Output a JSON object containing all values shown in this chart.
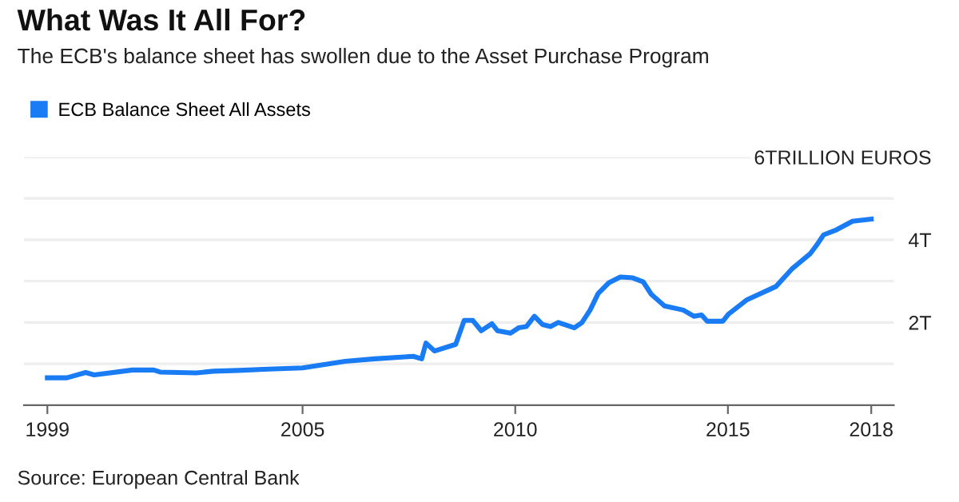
{
  "chart_data": {
    "type": "line",
    "title": "What Was It All For?",
    "subtitle": "The ECB's balance sheet has swollen due to the Asset Purchase Program",
    "x": [
      1999.0,
      1999.46,
      1999.9,
      2000.1,
      2001.0,
      2001.5,
      2001.65,
      2002.5,
      2002.9,
      2003.5,
      2004.2,
      2005.0,
      2006.0,
      2006.7,
      2007.6,
      2007.8,
      2007.9,
      2008.1,
      2008.6,
      2008.8,
      2009.0,
      2009.2,
      2009.45,
      2009.58,
      2009.89,
      2010.08,
      2010.26,
      2010.45,
      2010.64,
      2010.83,
      2011.01,
      2011.39,
      2011.57,
      2011.76,
      2011.95,
      2012.2,
      2012.47,
      2012.76,
      2013.01,
      2013.2,
      2013.51,
      2013.95,
      2014.2,
      2014.38,
      2014.51,
      2014.88,
      2015.01,
      2015.45,
      2016.13,
      2016.5,
      2016.94,
      2017.1,
      2017.25,
      2017.55,
      2017.93,
      2018.37
    ],
    "series": [
      {
        "name": "ECB Balance Sheet All Assets",
        "color": "#1a7cf5",
        "values": [
          0.66,
          0.66,
          0.79,
          0.73,
          0.85,
          0.85,
          0.8,
          0.78,
          0.82,
          0.84,
          0.87,
          0.9,
          1.06,
          1.12,
          1.18,
          1.12,
          1.5,
          1.31,
          1.47,
          2.05,
          2.05,
          1.8,
          1.97,
          1.8,
          1.74,
          1.87,
          1.9,
          2.15,
          1.95,
          1.9,
          2.0,
          1.87,
          2.0,
          2.3,
          2.7,
          2.96,
          3.1,
          3.08,
          2.98,
          2.68,
          2.4,
          2.3,
          2.15,
          2.18,
          2.03,
          2.03,
          2.2,
          2.55,
          2.87,
          3.29,
          3.67,
          3.89,
          4.12,
          4.24,
          4.45,
          4.5
        ]
      }
    ],
    "xlim": [
      1998.45,
      2018.9
    ],
    "xticks": [
      1999,
      2005,
      2010,
      2015,
      {
        "value": 2018.37,
        "label": "2018"
      }
    ],
    "ylim": [
      0,
      6
    ],
    "yticks": [
      {
        "value": 1,
        "label": null
      },
      {
        "value": 2,
        "label": "2T"
      },
      {
        "value": 3,
        "label": null
      },
      {
        "value": 4,
        "label": "4T"
      },
      {
        "value": 5,
        "label": null
      },
      {
        "value": 6,
        "label": "6TRILLION EUROS"
      }
    ],
    "grid": "y",
    "legend": "top left",
    "marker": "none",
    "line_style": "solid",
    "annotations": [
      "Source: European Central Bank"
    ]
  }
}
